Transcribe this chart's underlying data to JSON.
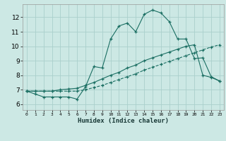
{
  "xlabel": "Humidex (Indice chaleur)",
  "bg_color": "#cce8e4",
  "line_color": "#1a6e62",
  "grid_color": "#aad0cc",
  "x_ticks": [
    0,
    1,
    2,
    3,
    4,
    5,
    6,
    7,
    8,
    9,
    10,
    11,
    12,
    13,
    14,
    15,
    16,
    17,
    18,
    19,
    20,
    21,
    22,
    23
  ],
  "y_ticks": [
    6,
    7,
    8,
    9,
    10,
    11,
    12
  ],
  "xlim": [
    -0.5,
    23.5
  ],
  "ylim": [
    5.6,
    12.9
  ],
  "series": [
    {
      "x": [
        0,
        1,
        2,
        3,
        4,
        5,
        6,
        7,
        8,
        9,
        10,
        11,
        12,
        13,
        14,
        15,
        16,
        17,
        18,
        19,
        20,
        21,
        22,
        23
      ],
      "y": [
        6.9,
        6.7,
        6.5,
        6.5,
        6.5,
        6.5,
        6.35,
        7.2,
        8.6,
        8.5,
        10.5,
        11.4,
        11.6,
        11.0,
        12.2,
        12.5,
        12.3,
        11.7,
        10.5,
        10.5,
        9.15,
        9.2,
        7.9,
        7.6
      ],
      "style": "solid"
    },
    {
      "x": [
        0,
        1,
        2,
        3,
        4,
        5,
        6,
        7,
        8,
        9,
        10,
        11,
        12,
        13,
        14,
        15,
        16,
        17,
        18,
        19,
        20,
        21,
        22,
        23
      ],
      "y": [
        6.9,
        6.9,
        6.9,
        6.9,
        6.9,
        6.9,
        6.9,
        7.0,
        7.15,
        7.3,
        7.5,
        7.7,
        7.9,
        8.1,
        8.35,
        8.55,
        8.75,
        8.95,
        9.15,
        9.35,
        9.55,
        9.75,
        9.95,
        10.1
      ],
      "style": "dashed"
    },
    {
      "x": [
        0,
        1,
        2,
        3,
        4,
        5,
        6,
        7,
        8,
        9,
        10,
        11,
        12,
        13,
        14,
        15,
        16,
        17,
        18,
        19,
        20,
        21,
        22,
        23
      ],
      "y": [
        6.9,
        6.9,
        6.9,
        6.9,
        7.0,
        7.05,
        7.1,
        7.3,
        7.5,
        7.75,
        8.0,
        8.2,
        8.5,
        8.7,
        9.0,
        9.2,
        9.4,
        9.6,
        9.8,
        10.0,
        10.1,
        8.0,
        7.85,
        7.6
      ],
      "style": "solid"
    }
  ]
}
